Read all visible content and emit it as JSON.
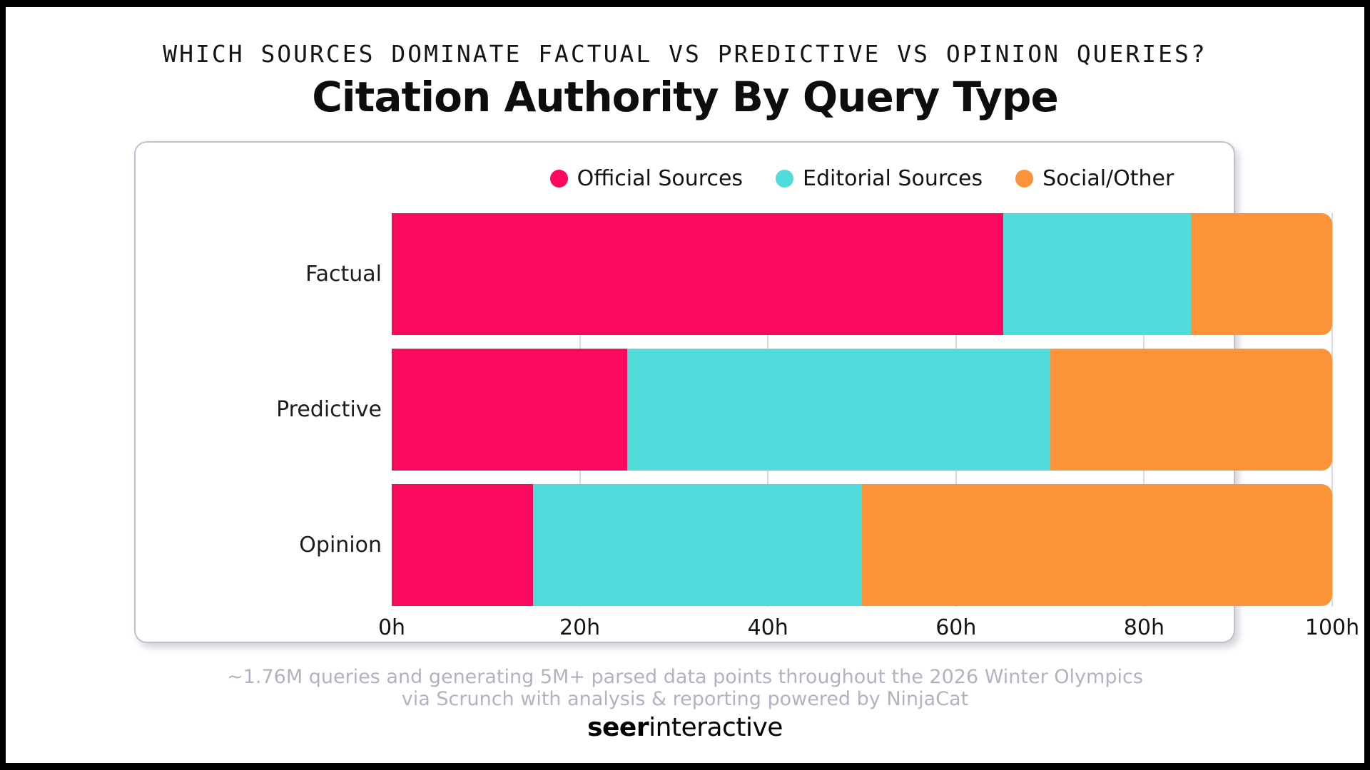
{
  "header": {
    "eyebrow": "WHICH SOURCES DOMINATE FACTUAL VS PREDICTIVE VS OPINION QUERIES?",
    "title": "Citation Authority By Query Type"
  },
  "chart_data": {
    "type": "bar",
    "orientation": "horizontal",
    "stacked": true,
    "title": "Citation Authority By Query Type",
    "categories": [
      "Factual",
      "Predictive",
      "Opinion"
    ],
    "series": [
      {
        "name": "Official Sources",
        "color": "#fa0a5f",
        "values": [
          65,
          25,
          15
        ]
      },
      {
        "name": "Editorial Sources",
        "color": "#52dbdb",
        "values": [
          20,
          45,
          35
        ]
      },
      {
        "name": "Social/Other",
        "color": "#fb9339",
        "values": [
          15,
          30,
          50
        ]
      }
    ],
    "x_ticks": [
      "0h",
      "20h",
      "40h",
      "60h",
      "80h",
      "100h"
    ],
    "xlim": [
      0,
      100
    ],
    "xlabel": "",
    "ylabel": "",
    "legend_position": "top",
    "grid": true
  },
  "footer": {
    "line1": "~1.76M queries and generating 5M+ parsed data points throughout the 2026 Winter Olympics",
    "line2": "via Scrunch with analysis & reporting powered by NinjaCat",
    "logo_bold": "seer",
    "logo_regular": "interactive"
  },
  "colors": {
    "official": "#fa0a5f",
    "editorial": "#52dbdb",
    "social": "#fb9339",
    "gridline": "#d9d9de",
    "card_border": "#c0bfce",
    "footnote": "#b3b1c2",
    "frame": "#000000"
  }
}
